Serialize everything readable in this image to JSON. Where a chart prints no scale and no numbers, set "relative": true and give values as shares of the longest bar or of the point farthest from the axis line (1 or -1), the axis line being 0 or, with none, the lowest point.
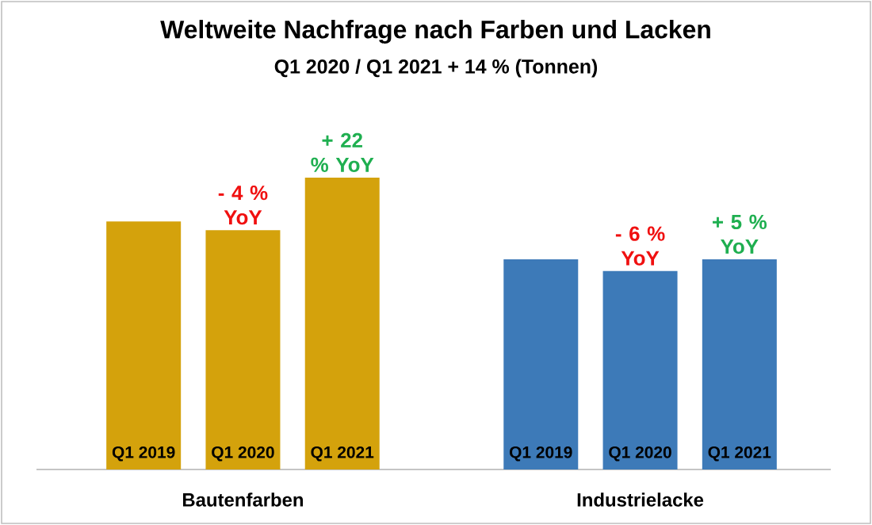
{
  "chart_data": {
    "type": "bar",
    "title": "Weltweite Nachfrage nach Farben und Lacken",
    "subtitle": "Q1 2020 / Q1 2021 + 14 % (Tonnen)",
    "relative": true,
    "categories": [
      "Q1 2019",
      "Q1 2020",
      "Q1 2021",
      null,
      "Q1 2019",
      "Q1 2020",
      "Q1 2021"
    ],
    "series": [
      {
        "name": "Bautenfarben",
        "color": "#D4A20C",
        "values": [
          0.85,
          0.82,
          1,
          null,
          null,
          null,
          null
        ]
      },
      {
        "name": "Industrielacke",
        "color": "#3D7AB8",
        "values": [
          null,
          null,
          null,
          null,
          0.72,
          0.68,
          0.72
        ]
      }
    ],
    "annotations": [
      "- 4 % YoY",
      "+ 22 % YoY",
      "- 6 % YoY",
      "+ 5 % YoY"
    ]
  }
}
